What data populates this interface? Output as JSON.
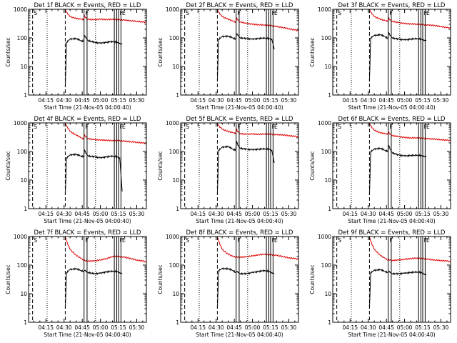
{
  "chart_data": {
    "type": "line",
    "layout": "3x3 grid",
    "y_scale": "log",
    "ylim": [
      1,
      1000
    ],
    "y_ticks": [
      1,
      10,
      100,
      1000
    ],
    "y_tick_labels": [
      "1",
      "10",
      "100",
      "1000"
    ],
    "ylabel": "Counts/sec",
    "xlabel": "Start Time (21-Nov-05 04:00:40)",
    "x_unit": "minutes after 04:00",
    "xlim": [
      0.67,
      98
    ],
    "x_ticks": [
      15,
      30,
      45,
      60,
      75,
      90
    ],
    "x_tick_labels": [
      "04:15",
      "04:30",
      "04:45",
      "05:00",
      "05:15",
      "05:30"
    ],
    "colors": {
      "events": "#000000",
      "lld": "#dd0000",
      "axes": "#000000"
    },
    "annotations": [
      {
        "label": "S",
        "kind": "dashed",
        "x": 4.0
      },
      {
        "label": "",
        "kind": "dotted",
        "x": 16.0
      },
      {
        "label": "",
        "kind": "dashed",
        "x": 31.0
      },
      {
        "label": "F",
        "kind": "solid",
        "x": 46.5
      },
      {
        "label": "",
        "kind": "solid",
        "x": 49.0
      },
      {
        "label": "",
        "kind": "dotted",
        "x": 56.0
      },
      {
        "label": "",
        "kind": "solid",
        "x": 71.5
      },
      {
        "label": "",
        "kind": "solid",
        "x": 73.5
      },
      {
        "label": "F",
        "kind": "solid",
        "x": 75.0
      },
      {
        "label": "E",
        "kind": "solid",
        "x": 77.0
      }
    ],
    "panels": [
      {
        "title": "Det 1f BLACK = Events, RED = LLD",
        "series": [
          {
            "name": "Events",
            "x": [
              31,
              32,
              35,
              40,
              44,
              46,
              47,
              48,
              50,
              55,
              60,
              65,
              70,
              74,
              76,
              78
            ],
            "values": [
              2,
              70,
              90,
              95,
              80,
              75,
              120,
              100,
              80,
              70,
              65,
              70,
              75,
              70,
              65,
              60
            ]
          },
          {
            "name": "LLD",
            "x": [
              3,
              8,
              12,
              20,
              31,
              32,
              35,
              40,
              44,
              46,
              47,
              48,
              50,
              55,
              60,
              65,
              70,
              75,
              80,
              85,
              90,
              95,
              98
            ],
            "values": [
              1000,
              1000,
              1000,
              1000,
              1000,
              800,
              550,
              480,
              450,
              430,
              600,
              500,
              450,
              430,
              450,
              440,
              450,
              430,
              420,
              400,
              380,
              360,
              350
            ]
          }
        ]
      },
      {
        "title": "Det 2f BLACK = Events, RED = LLD",
        "series": [
          {
            "name": "Events",
            "x": [
              31,
              32,
              35,
              40,
              44,
              46,
              47,
              48,
              50,
              55,
              60,
              65,
              70,
              74,
              76,
              78
            ],
            "values": [
              3,
              90,
              110,
              115,
              100,
              90,
              140,
              120,
              100,
              95,
              90,
              95,
              100,
              95,
              90,
              40
            ]
          },
          {
            "name": "LLD",
            "x": [
              3,
              8,
              12,
              20,
              31,
              32,
              35,
              40,
              44,
              46,
              47,
              48,
              50,
              55,
              60,
              65,
              70,
              75,
              80,
              85,
              90,
              95,
              98
            ],
            "values": [
              1000,
              1000,
              1000,
              1000,
              1000,
              800,
              550,
              450,
              380,
              350,
              500,
              420,
              360,
              320,
              300,
              290,
              280,
              270,
              250,
              230,
              210,
              190,
              180
            ]
          }
        ]
      },
      {
        "title": "Det 3f BLACK = Events, RED = LLD",
        "series": [
          {
            "name": "Events",
            "x": [
              31,
              32,
              35,
              40,
              44,
              46,
              47,
              48,
              50,
              55,
              60,
              65,
              70,
              74,
              76,
              78
            ],
            "values": [
              3,
              100,
              120,
              130,
              110,
              95,
              150,
              120,
              100,
              90,
              85,
              90,
              95,
              90,
              85,
              80
            ]
          },
          {
            "name": "LLD",
            "x": [
              3,
              8,
              12,
              20,
              31,
              32,
              35,
              40,
              44,
              46,
              47,
              48,
              50,
              55,
              60,
              65,
              70,
              75,
              80,
              85,
              90,
              95,
              98
            ],
            "values": [
              1000,
              1000,
              1000,
              1000,
              1000,
              800,
              550,
              450,
              400,
              380,
              500,
              420,
              380,
              340,
              320,
              310,
              300,
              290,
              280,
              270,
              250,
              230,
              220
            ]
          }
        ]
      },
      {
        "title": "Det 4f BLACK = Events, RED = LLD",
        "series": [
          {
            "name": "Events",
            "x": [
              31,
              32,
              35,
              40,
              44,
              46,
              47,
              48,
              50,
              55,
              60,
              65,
              70,
              74,
              76,
              78
            ],
            "values": [
              3,
              60,
              75,
              80,
              70,
              65,
              110,
              85,
              70,
              65,
              60,
              65,
              70,
              65,
              60,
              4
            ]
          },
          {
            "name": "LLD",
            "x": [
              3,
              8,
              12,
              20,
              31,
              32,
              35,
              40,
              44,
              46,
              47,
              48,
              50,
              55,
              60,
              65,
              70,
              75,
              80,
              85,
              90,
              95,
              98
            ],
            "values": [
              1000,
              1000,
              1000,
              1000,
              1000,
              800,
              500,
              380,
              300,
              270,
              380,
              320,
              280,
              260,
              250,
              250,
              240,
              240,
              230,
              220,
              210,
              200,
              190
            ]
          }
        ]
      },
      {
        "title": "Det 5f BLACK = Events, RED = LLD",
        "series": [
          {
            "name": "Events",
            "x": [
              31,
              32,
              35,
              40,
              44,
              46,
              47,
              48,
              50,
              55,
              60,
              65,
              70,
              74,
              76,
              78
            ],
            "values": [
              3,
              110,
              140,
              150,
              120,
              110,
              220,
              160,
              130,
              120,
              115,
              120,
              125,
              120,
              110,
              40
            ]
          },
          {
            "name": "LLD",
            "x": [
              3,
              8,
              12,
              20,
              31,
              32,
              35,
              40,
              44,
              46,
              47,
              48,
              50,
              55,
              60,
              65,
              70,
              75,
              80,
              85,
              90,
              95,
              98
            ],
            "values": [
              1000,
              1000,
              1000,
              1000,
              1000,
              800,
              600,
              500,
              450,
              420,
              600,
              480,
              420,
              400,
              410,
              400,
              410,
              400,
              390,
              380,
              360,
              340,
              330
            ]
          }
        ]
      },
      {
        "title": "Det 6f BLACK = Events, RED = LLD",
        "series": [
          {
            "name": "Events",
            "x": [
              31,
              32,
              35,
              40,
              44,
              46,
              47,
              48,
              50,
              55,
              60,
              65,
              70,
              74,
              76,
              78
            ],
            "values": [
              3,
              100,
              120,
              130,
              110,
              100,
              160,
              120,
              90,
              75,
              70,
              72,
              75,
              72,
              70,
              65
            ]
          },
          {
            "name": "LLD",
            "x": [
              3,
              8,
              12,
              20,
              31,
              32,
              35,
              40,
              44,
              46,
              47,
              48,
              50,
              55,
              60,
              65,
              70,
              75,
              80,
              85,
              90,
              95,
              98
            ],
            "values": [
              1000,
              1000,
              1000,
              1000,
              1000,
              800,
              550,
              450,
              420,
              400,
              480,
              400,
              360,
              330,
              310,
              300,
              300,
              290,
              280,
              270,
              260,
              250,
              240
            ]
          }
        ]
      },
      {
        "title": "Det 7f BLACK = Events, RED = LLD",
        "series": [
          {
            "name": "Events",
            "x": [
              31,
              32,
              35,
              40,
              44,
              46,
              47,
              48,
              50,
              55,
              60,
              65,
              70,
              74,
              76,
              78
            ],
            "values": [
              3,
              55,
              70,
              75,
              65,
              60,
              65,
              60,
              55,
              50,
              52,
              58,
              62,
              60,
              55,
              50
            ]
          },
          {
            "name": "LLD",
            "x": [
              3,
              8,
              12,
              20,
              31,
              32,
              35,
              40,
              44,
              46,
              47,
              48,
              50,
              55,
              60,
              65,
              70,
              75,
              80,
              85,
              90,
              95,
              98
            ],
            "values": [
              1000,
              1000,
              1000,
              1000,
              1000,
              700,
              350,
              220,
              170,
              150,
              150,
              140,
              140,
              140,
              150,
              170,
              200,
              200,
              190,
              170,
              150,
              140,
              130
            ]
          }
        ]
      },
      {
        "title": "Det 8f BLACK = Events, RED = LLD",
        "series": [
          {
            "name": "Events",
            "x": [
              31,
              32,
              35,
              40,
              44,
              46,
              47,
              48,
              50,
              55,
              60,
              65,
              70,
              74,
              76,
              78
            ],
            "values": [
              3,
              65,
              75,
              75,
              65,
              55,
              60,
              55,
              50,
              50,
              55,
              60,
              65,
              60,
              55,
              50
            ]
          },
          {
            "name": "LLD",
            "x": [
              3,
              8,
              12,
              20,
              31,
              32,
              35,
              40,
              44,
              46,
              47,
              48,
              50,
              55,
              60,
              65,
              70,
              75,
              80,
              85,
              90,
              95,
              98
            ],
            "values": [
              1000,
              1000,
              1000,
              1000,
              1000,
              700,
              350,
              240,
              200,
              190,
              200,
              190,
              190,
              195,
              210,
              230,
              240,
              230,
              220,
              200,
              180,
              170,
              160
            ]
          }
        ]
      },
      {
        "title": "Det 9f BLACK = Events, RED = LLD",
        "series": [
          {
            "name": "Events",
            "x": [
              31,
              32,
              35,
              40,
              44,
              46,
              47,
              48,
              50,
              55,
              60,
              65,
              70,
              74,
              76,
              78
            ],
            "values": [
              3,
              55,
              65,
              70,
              60,
              55,
              60,
              55,
              50,
              50,
              52,
              55,
              58,
              55,
              50,
              45
            ]
          },
          {
            "name": "LLD",
            "x": [
              3,
              8,
              12,
              20,
              31,
              32,
              35,
              40,
              44,
              46,
              47,
              48,
              50,
              55,
              60,
              65,
              70,
              75,
              80,
              85,
              90,
              95,
              98
            ],
            "values": [
              1000,
              1000,
              1000,
              1000,
              1000,
              700,
              350,
              220,
              170,
              150,
              160,
              150,
              145,
              150,
              160,
              170,
              175,
              170,
              160,
              150,
              145,
              140,
              130
            ]
          }
        ]
      }
    ]
  }
}
